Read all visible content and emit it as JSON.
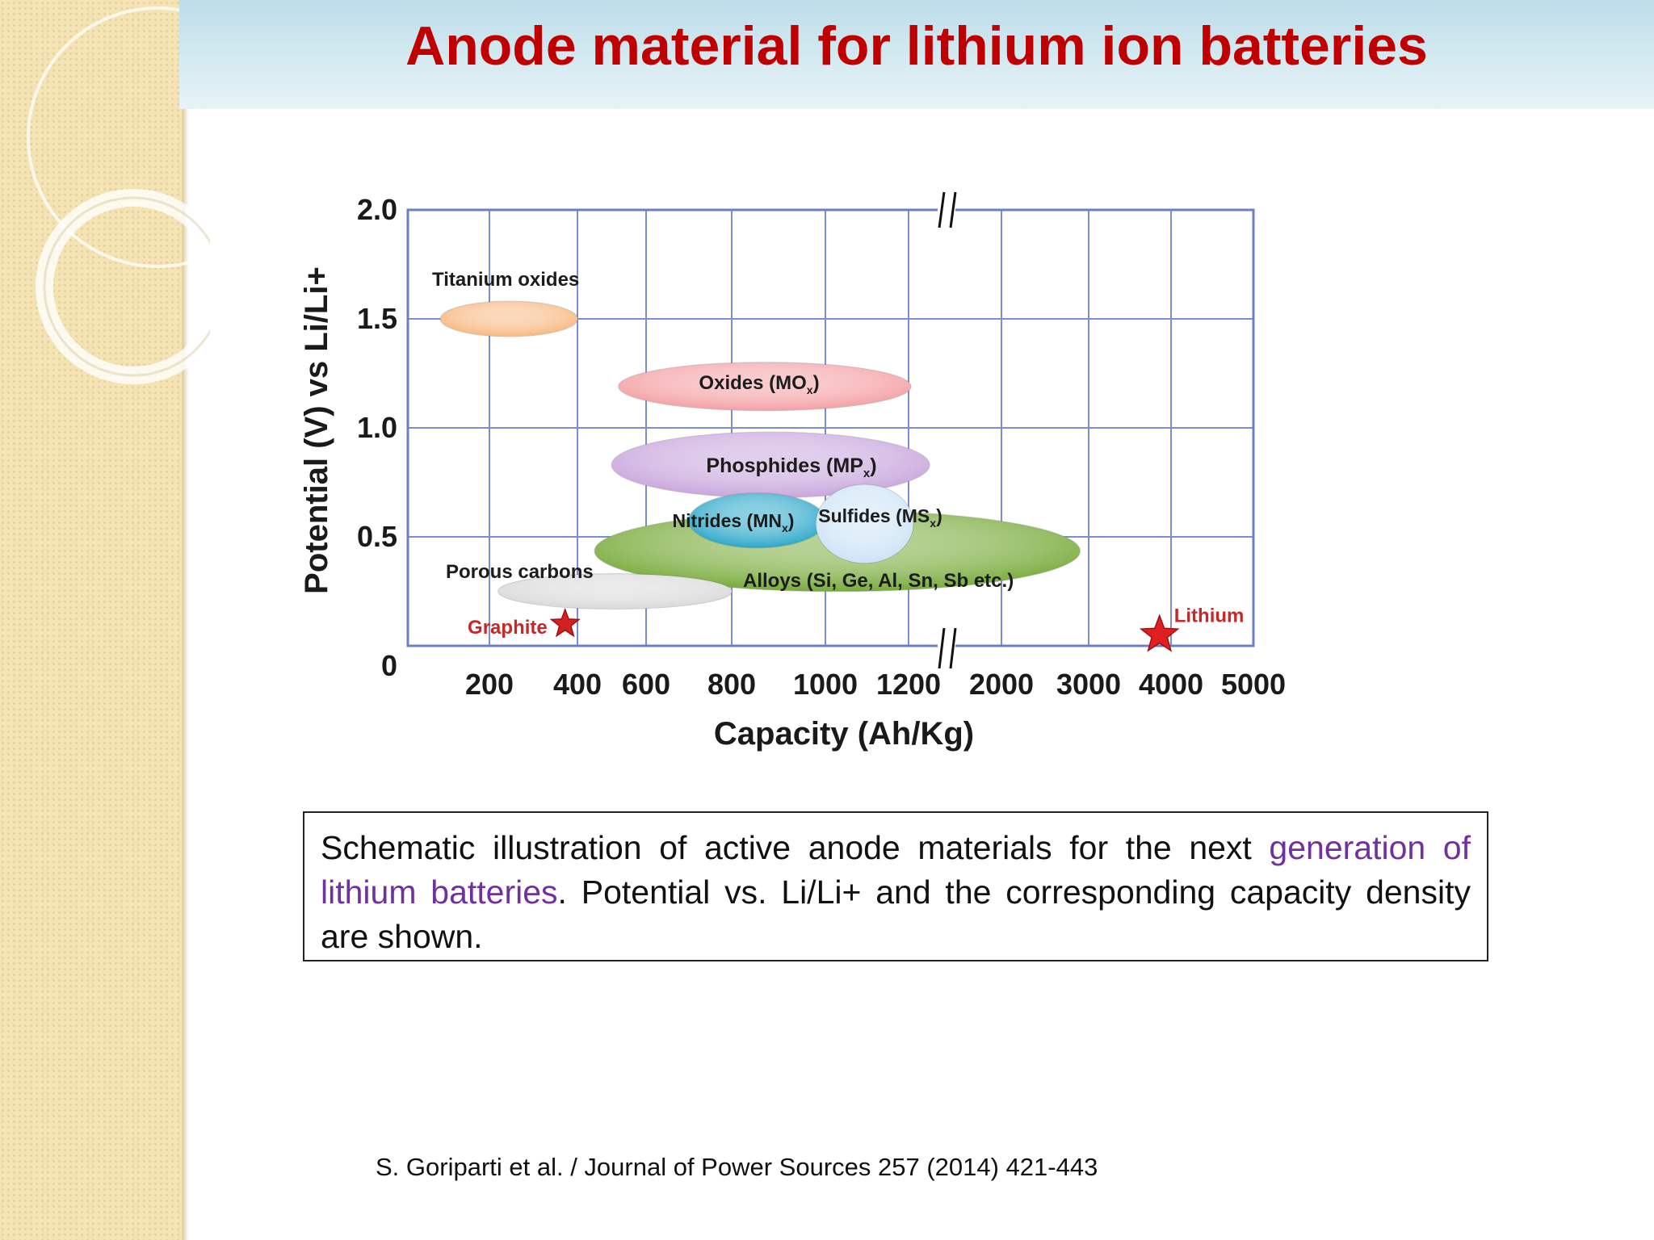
{
  "slide": {
    "title": "Anode material for lithium ion batteries",
    "caption": {
      "part1": "Schematic illustration of active anode materials for the next ",
      "highlight": "generation of lithium batteries",
      "part2": ". Potential vs. Li/Li+ and the corresponding capacity density are shown."
    },
    "citation": "S. Goriparti et al. / Journal of Power Sources 257 (2014) 421-443",
    "colors": {
      "title": "#c00000",
      "highlight": "#7030a0",
      "sidebar": "#f4e3b4",
      "title_bar": "#cfe6ef"
    }
  },
  "chart_data": {
    "type": "scatter",
    "title": "",
    "xlabel": "Capacity (Ah/Kg)",
    "ylabel": "Potential (V) vs Li/Li+",
    "x_ticks": [
      "200",
      "400",
      "600",
      "800",
      "1000",
      "1200",
      "2000",
      "3000",
      "4000",
      "5000"
    ],
    "y_ticks": [
      "0",
      "0.5",
      "1.0",
      "1.5",
      "2.0"
    ],
    "ylim": [
      0,
      2.0
    ],
    "x_axis_break_between": [
      "1200",
      "2000"
    ],
    "grid": true,
    "regions": [
      {
        "label": "Titanium oxides",
        "x_range": [
          140,
          400
        ],
        "y_range": [
          1.42,
          1.58
        ],
        "color": "#f8b880"
      },
      {
        "label": "Oxides (MOx)",
        "x_range": [
          520,
          1220
        ],
        "y_range": [
          1.08,
          1.3
        ],
        "color": "#f4a0a4"
      },
      {
        "label": "Phosphides (MPx)",
        "x_range": [
          500,
          1380
        ],
        "y_range": [
          0.68,
          0.98
        ],
        "color": "#c8a6dc"
      },
      {
        "label": "Alloys (Si, Ge, Al, Sn, Sb etc.)",
        "x_range": [
          450,
          2900
        ],
        "y_range": [
          0.25,
          0.62
        ],
        "color": "#78ab3a"
      },
      {
        "label": "Nitrides (MNx)",
        "x_range": [
          700,
          1000
        ],
        "y_range": [
          0.45,
          0.7
        ],
        "color": "#2aa7c9"
      },
      {
        "label": "Sulfides (MSx)",
        "x_range": [
          980,
          1240
        ],
        "y_range": [
          0.38,
          0.74
        ],
        "color": "#cde4f6"
      },
      {
        "label": "Porous carbons",
        "x_range": [
          220,
          800
        ],
        "y_range": [
          0.17,
          0.33
        ],
        "color": "#d9d9d9"
      }
    ],
    "points": [
      {
        "label": "Graphite",
        "x": 372,
        "y": 0.1,
        "color": "#d42020"
      },
      {
        "label": "Lithium",
        "x": 3860,
        "y": 0.05,
        "color": "#e02020"
      }
    ],
    "axis_break_mark": "//"
  }
}
